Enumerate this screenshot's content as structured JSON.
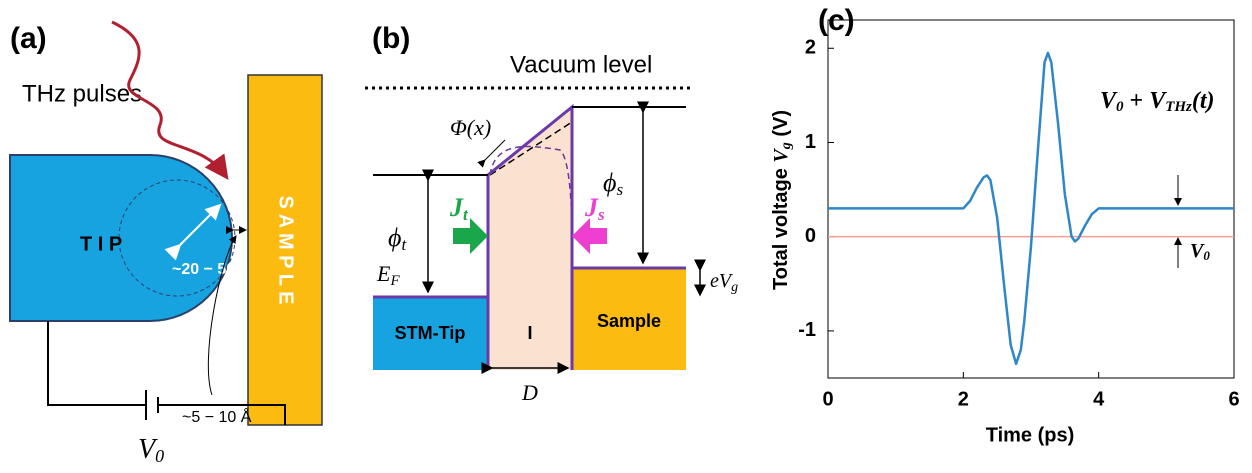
{
  "panel_a": {
    "label": "(a)",
    "pulse_label": "THz pulses",
    "tip_label": "T I P",
    "radius_label": "~20 − 50nm",
    "gap_label": "~5 − 10 Å",
    "sample_label": "S A M P L E",
    "bias_label": {
      "main": "V",
      "sub": "0"
    }
  },
  "panel_b": {
    "label": "(b)",
    "vacuum_label": "Vacuum level",
    "barrier_label": "Φ(x)",
    "phi_t": {
      "main": "ϕ",
      "sub": "t"
    },
    "phi_s": {
      "main": "ϕ",
      "sub": "s"
    },
    "j_t": {
      "main": "J",
      "sub": "t"
    },
    "j_s": {
      "main": "J",
      "sub": "s"
    },
    "e_f": {
      "main": "E",
      "sub": "F"
    },
    "e_vg": {
      "main": "eV",
      "sub": "g"
    },
    "tip_label": "STM-Tip",
    "insulator_label": "I",
    "sample_label": "Sample",
    "width_label": "D"
  },
  "chart_data": {
    "type": "line",
    "label": "(c)",
    "xlabel": "Time (ps)",
    "ylabel": {
      "main": "Total voltage ",
      "var": "V",
      "sub": "g",
      "unit": " (V)"
    },
    "x": [
      0,
      2.0,
      2.1,
      2.2,
      2.3,
      2.35,
      2.4,
      2.5,
      2.6,
      2.7,
      2.78,
      2.85,
      2.9,
      3.0,
      3.1,
      3.2,
      3.25,
      3.3,
      3.4,
      3.5,
      3.6,
      3.65,
      3.7,
      3.8,
      3.9,
      4.0,
      6
    ],
    "values": [
      0.3,
      0.3,
      0.38,
      0.52,
      0.63,
      0.65,
      0.6,
      0.2,
      -0.5,
      -1.15,
      -1.35,
      -1.2,
      -0.9,
      -0.1,
      0.9,
      1.85,
      1.95,
      1.85,
      1.2,
      0.45,
      0.0,
      -0.05,
      -0.02,
      0.12,
      0.24,
      0.3,
      0.3
    ],
    "color": "#2f86c8",
    "xlim": [
      0,
      6
    ],
    "ylim": [
      -1.5,
      2.3
    ],
    "xticks": [
      0,
      2,
      4,
      6
    ],
    "yticks": [
      -1,
      0,
      1,
      2
    ],
    "reference_line": {
      "value": 0,
      "color": "#f0a090"
    },
    "annotation": {
      "a": "V",
      "a_sub": "0",
      "op": " + ",
      "b": "V",
      "b_sub": "THz",
      "tail": "(t)"
    },
    "offset_label": {
      "main": "V",
      "sub": "0"
    }
  }
}
